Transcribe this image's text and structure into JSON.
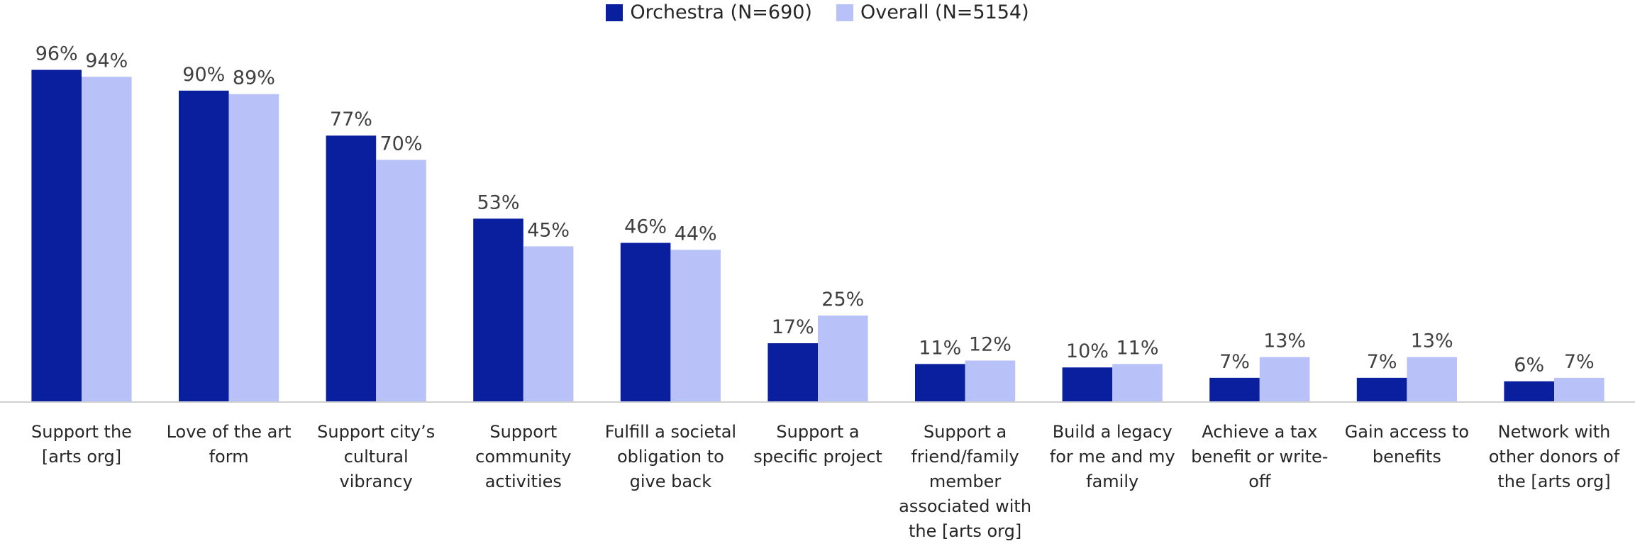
{
  "chart_data": {
    "type": "bar",
    "categories": [
      "Support the [arts org]",
      "Love of the art form",
      "Support city’s cultural vibrancy",
      "Support community activities",
      "Fulfill a societal obligation to give back",
      "Support a specific project",
      "Support a friend/family member associated with the [arts org]",
      "Build a legacy for me and my family",
      "Achieve a tax benefit or write-off",
      "Gain access to benefits",
      "Network with other donors of the [arts org]"
    ],
    "series": [
      {
        "name": "Orchestra (N=690)",
        "color": "#0a1f9e",
        "values": [
          96,
          90,
          77,
          53,
          46,
          17,
          11,
          10,
          7,
          7,
          6
        ],
        "value_labels": [
          "96%",
          "90%",
          "77%",
          "53%",
          "46%",
          "17%",
          "11%",
          "10%",
          "7%",
          "7%",
          "6%"
        ]
      },
      {
        "name": "Overall (N=5154)",
        "color": "#b8c2f8",
        "values": [
          94,
          89,
          70,
          45,
          44,
          25,
          12,
          11,
          13,
          13,
          7
        ],
        "value_labels": [
          "94%",
          "89%",
          "70%",
          "45%",
          "44%",
          "25%",
          "12%",
          "11%",
          "13%",
          "13%",
          "7%"
        ]
      }
    ],
    "ylim": [
      0,
      100
    ],
    "legend": "top"
  }
}
